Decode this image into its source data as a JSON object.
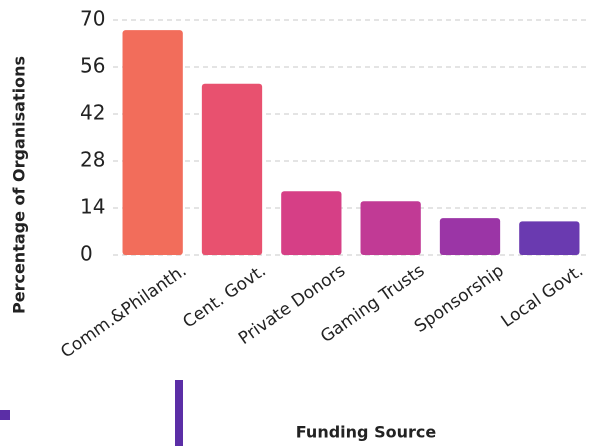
{
  "chart_data": {
    "type": "bar",
    "categories": [
      "Comm.&Philanth.",
      "Cent. Govt.",
      "Private Donors",
      "Gaming Trusts",
      "Sponsorship",
      "Local Govt."
    ],
    "values": [
      67,
      51,
      19,
      16,
      11,
      10
    ],
    "colors": [
      "#f26d5b",
      "#e8516f",
      "#d63f86",
      "#c13a95",
      "#9b35a6",
      "#6a3ab0"
    ],
    "ylim": [
      0,
      70
    ],
    "yticks": [
      0,
      14,
      28,
      42,
      56,
      70
    ],
    "grid": true,
    "y_label": "Percentage of Organisations",
    "x_label": "Funding Source"
  }
}
